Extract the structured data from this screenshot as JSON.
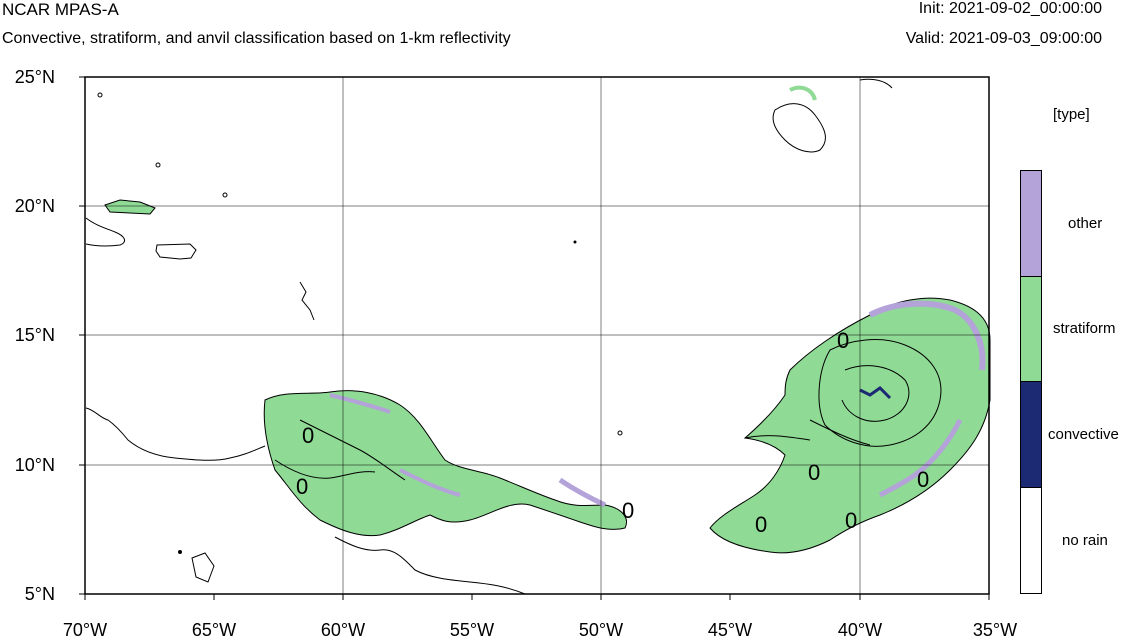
{
  "header": {
    "title": "NCAR MPAS-A",
    "subtitle": "Convective, stratiform, and anvil classification based on 1-km reflectivity",
    "init": "Init: 2021-09-02_00:00:00",
    "valid": "Valid: 2021-09-03_09:00:00"
  },
  "map": {
    "lat_labels": [
      "25°N",
      "20°N",
      "15°N",
      "10°N",
      "5°N"
    ],
    "lon_labels": [
      "70°W",
      "65°W",
      "60°W",
      "55°W",
      "50°W",
      "45°W",
      "40°W",
      "35°W"
    ],
    "contour_labels": [
      "0",
      "0",
      "0",
      "0",
      "0",
      "0",
      "0",
      "0"
    ]
  },
  "legend": {
    "title": "[type]",
    "items": [
      {
        "label": "other",
        "color": "#b3a3d9"
      },
      {
        "label": "stratiform",
        "color": "#8fda95"
      },
      {
        "label": "convective",
        "color": "#1b2a73"
      },
      {
        "label": "no rain",
        "color": "#ffffff"
      }
    ]
  }
}
